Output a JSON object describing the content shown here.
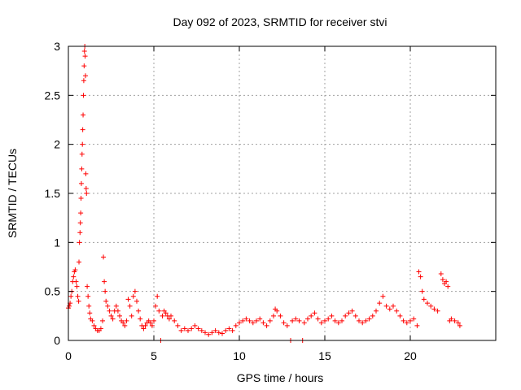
{
  "chart_data": {
    "type": "scatter",
    "title": "Day 092 of 2023, SRMTID for receiver stvi",
    "xlabel": "GPS time / hours",
    "ylabel": "SRMTID / TECUs",
    "xlim": [
      0,
      25
    ],
    "ylim": [
      0,
      3
    ],
    "xticks": [
      0,
      5,
      10,
      15,
      20
    ],
    "xtick_labels": [
      "0",
      "5",
      "10",
      "15",
      "20"
    ],
    "yticks": [
      0,
      0.5,
      1,
      1.5,
      2,
      2.5,
      3
    ],
    "ytick_labels": [
      "0",
      "0.5",
      "1",
      "1.5",
      "2",
      "2.5",
      "3"
    ],
    "grid": true,
    "marker": "+",
    "color": "#ff0000",
    "series": [
      {
        "name": "stvi",
        "points": [
          [
            0.0,
            0.33
          ],
          [
            0.05,
            0.35
          ],
          [
            0.1,
            0.38
          ],
          [
            0.15,
            0.45
          ],
          [
            0.2,
            0.5
          ],
          [
            0.25,
            0.6
          ],
          [
            0.3,
            0.65
          ],
          [
            0.35,
            0.7
          ],
          [
            0.4,
            0.72
          ],
          [
            0.45,
            0.6
          ],
          [
            0.5,
            0.55
          ],
          [
            0.55,
            0.45
          ],
          [
            0.6,
            0.4
          ],
          [
            0.62,
            0.8
          ],
          [
            0.65,
            1.0
          ],
          [
            0.68,
            1.1
          ],
          [
            0.7,
            1.2
          ],
          [
            0.72,
            1.3
          ],
          [
            0.74,
            1.45
          ],
          [
            0.76,
            1.6
          ],
          [
            0.78,
            1.75
          ],
          [
            0.8,
            1.9
          ],
          [
            0.82,
            2.0
          ],
          [
            0.84,
            2.15
          ],
          [
            0.86,
            2.3
          ],
          [
            0.88,
            2.5
          ],
          [
            0.9,
            2.65
          ],
          [
            0.92,
            2.8
          ],
          [
            0.94,
            2.95
          ],
          [
            0.96,
            3.0
          ],
          [
            0.98,
            2.9
          ],
          [
            1.0,
            2.7
          ],
          [
            1.02,
            1.7
          ],
          [
            1.04,
            1.55
          ],
          [
            1.06,
            1.5
          ],
          [
            1.1,
            0.55
          ],
          [
            1.15,
            0.45
          ],
          [
            1.2,
            0.35
          ],
          [
            1.25,
            0.28
          ],
          [
            1.3,
            0.22
          ],
          [
            1.4,
            0.2
          ],
          [
            1.5,
            0.15
          ],
          [
            1.6,
            0.12
          ],
          [
            1.7,
            0.1
          ],
          [
            1.8,
            0.1
          ],
          [
            1.9,
            0.12
          ],
          [
            2.0,
            0.2
          ],
          [
            2.05,
            0.85
          ],
          [
            2.1,
            0.6
          ],
          [
            2.15,
            0.5
          ],
          [
            2.2,
            0.4
          ],
          [
            2.3,
            0.35
          ],
          [
            2.4,
            0.3
          ],
          [
            2.5,
            0.25
          ],
          [
            2.6,
            0.22
          ],
          [
            2.7,
            0.3
          ],
          [
            2.8,
            0.35
          ],
          [
            2.9,
            0.3
          ],
          [
            3.0,
            0.25
          ],
          [
            3.1,
            0.2
          ],
          [
            3.2,
            0.18
          ],
          [
            3.3,
            0.15
          ],
          [
            3.4,
            0.2
          ],
          [
            3.5,
            0.42
          ],
          [
            3.6,
            0.35
          ],
          [
            3.7,
            0.25
          ],
          [
            3.8,
            0.45
          ],
          [
            3.9,
            0.5
          ],
          [
            4.0,
            0.4
          ],
          [
            4.1,
            0.3
          ],
          [
            4.2,
            0.22
          ],
          [
            4.3,
            0.15
          ],
          [
            4.4,
            0.12
          ],
          [
            4.5,
            0.15
          ],
          [
            4.6,
            0.18
          ],
          [
            4.7,
            0.2
          ],
          [
            4.8,
            0.18
          ],
          [
            4.9,
            0.15
          ],
          [
            5.0,
            0.2
          ],
          [
            5.1,
            0.35
          ],
          [
            5.2,
            0.45
          ],
          [
            5.3,
            0.3
          ],
          [
            5.4,
            0.0
          ],
          [
            5.5,
            0.25
          ],
          [
            5.6,
            0.3
          ],
          [
            5.7,
            0.28
          ],
          [
            5.8,
            0.25
          ],
          [
            5.9,
            0.22
          ],
          [
            6.0,
            0.25
          ],
          [
            6.2,
            0.2
          ],
          [
            6.4,
            0.15
          ],
          [
            6.6,
            0.1
          ],
          [
            6.8,
            0.12
          ],
          [
            7.0,
            0.1
          ],
          [
            7.2,
            0.12
          ],
          [
            7.4,
            0.15
          ],
          [
            7.6,
            0.12
          ],
          [
            7.8,
            0.1
          ],
          [
            8.0,
            0.08
          ],
          [
            8.2,
            0.06
          ],
          [
            8.4,
            0.08
          ],
          [
            8.6,
            0.1
          ],
          [
            8.8,
            0.08
          ],
          [
            9.0,
            0.07
          ],
          [
            9.2,
            0.1
          ],
          [
            9.4,
            0.12
          ],
          [
            9.6,
            0.1
          ],
          [
            9.8,
            0.15
          ],
          [
            10.0,
            0.18
          ],
          [
            10.2,
            0.2
          ],
          [
            10.4,
            0.22
          ],
          [
            10.6,
            0.2
          ],
          [
            10.8,
            0.18
          ],
          [
            11.0,
            0.2
          ],
          [
            11.2,
            0.22
          ],
          [
            11.4,
            0.18
          ],
          [
            11.6,
            0.15
          ],
          [
            11.8,
            0.2
          ],
          [
            12.0,
            0.25
          ],
          [
            12.1,
            0.32
          ],
          [
            12.2,
            0.3
          ],
          [
            12.4,
            0.25
          ],
          [
            12.6,
            0.18
          ],
          [
            12.8,
            0.15
          ],
          [
            13.0,
            0.0
          ],
          [
            13.1,
            0.2
          ],
          [
            13.3,
            0.22
          ],
          [
            13.5,
            0.2
          ],
          [
            13.7,
            0.0
          ],
          [
            13.8,
            0.18
          ],
          [
            14.0,
            0.22
          ],
          [
            14.2,
            0.25
          ],
          [
            14.4,
            0.28
          ],
          [
            14.6,
            0.22
          ],
          [
            14.8,
            0.18
          ],
          [
            15.0,
            0.2
          ],
          [
            15.2,
            0.22
          ],
          [
            15.4,
            0.25
          ],
          [
            15.6,
            0.2
          ],
          [
            15.8,
            0.18
          ],
          [
            16.0,
            0.2
          ],
          [
            16.2,
            0.25
          ],
          [
            16.4,
            0.28
          ],
          [
            16.6,
            0.3
          ],
          [
            16.8,
            0.25
          ],
          [
            17.0,
            0.2
          ],
          [
            17.2,
            0.18
          ],
          [
            17.4,
            0.2
          ],
          [
            17.6,
            0.22
          ],
          [
            17.8,
            0.25
          ],
          [
            18.0,
            0.3
          ],
          [
            18.2,
            0.38
          ],
          [
            18.4,
            0.45
          ],
          [
            18.6,
            0.35
          ],
          [
            18.8,
            0.32
          ],
          [
            19.0,
            0.35
          ],
          [
            19.2,
            0.3
          ],
          [
            19.4,
            0.25
          ],
          [
            19.6,
            0.2
          ],
          [
            19.8,
            0.18
          ],
          [
            20.0,
            0.2
          ],
          [
            20.2,
            0.22
          ],
          [
            20.4,
            0.15
          ],
          [
            20.5,
            0.7
          ],
          [
            20.6,
            0.65
          ],
          [
            20.7,
            0.5
          ],
          [
            20.8,
            0.42
          ],
          [
            21.0,
            0.38
          ],
          [
            21.2,
            0.35
          ],
          [
            21.4,
            0.32
          ],
          [
            21.6,
            0.3
          ],
          [
            21.8,
            0.68
          ],
          [
            21.9,
            0.62
          ],
          [
            22.0,
            0.58
          ],
          [
            22.1,
            0.6
          ],
          [
            22.2,
            0.55
          ],
          [
            22.3,
            0.2
          ],
          [
            22.4,
            0.22
          ],
          [
            22.6,
            0.2
          ],
          [
            22.8,
            0.18
          ],
          [
            22.9,
            0.15
          ]
        ]
      }
    ]
  }
}
